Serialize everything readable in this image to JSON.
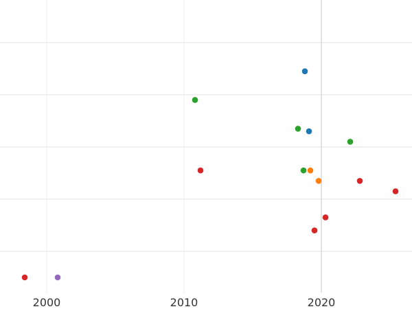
{
  "chart_data": {
    "type": "scatter",
    "title": "",
    "xlabel": "",
    "ylabel": "",
    "xlim": [
      1996.6,
      2026.6
    ],
    "ylim": [
      0,
      1
    ],
    "grid": true,
    "x_ticks": [
      {
        "value": 2000,
        "label": "2000"
      },
      {
        "value": 2010,
        "label": "2010"
      },
      {
        "value": 2020,
        "label": "2020"
      }
    ],
    "y_gridlines": [
      0.1,
      0.3,
      0.5,
      0.7,
      0.9
    ],
    "points": [
      {
        "x": 2018.8,
        "y": 0.79,
        "color": "#1f77b4"
      },
      {
        "x": 2019.1,
        "y": 0.56,
        "color": "#1f77b4"
      },
      {
        "x": 2010.8,
        "y": 0.68,
        "color": "#2ca02c"
      },
      {
        "x": 2018.3,
        "y": 0.57,
        "color": "#2ca02c"
      },
      {
        "x": 2018.7,
        "y": 0.41,
        "color": "#2ca02c"
      },
      {
        "x": 2022.1,
        "y": 0.52,
        "color": "#2ca02c"
      },
      {
        "x": 2019.2,
        "y": 0.41,
        "color": "#ff7f0e"
      },
      {
        "x": 2019.8,
        "y": 0.37,
        "color": "#ff7f0e"
      },
      {
        "x": 1998.4,
        "y": 0.0,
        "color": "#d62728"
      },
      {
        "x": 2011.2,
        "y": 0.41,
        "color": "#d62728"
      },
      {
        "x": 2022.8,
        "y": 0.37,
        "color": "#d62728"
      },
      {
        "x": 2025.4,
        "y": 0.33,
        "color": "#d62728"
      },
      {
        "x": 2020.3,
        "y": 0.23,
        "color": "#d62728"
      },
      {
        "x": 2019.5,
        "y": 0.18,
        "color": "#d62728"
      },
      {
        "x": 2000.8,
        "y": 0.0,
        "color": "#9467bd"
      }
    ]
  }
}
